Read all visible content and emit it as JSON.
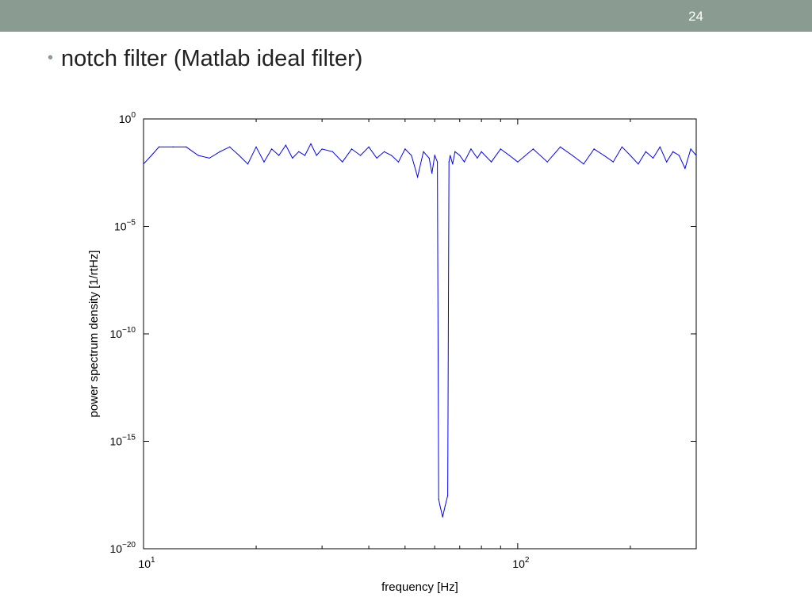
{
  "slide": {
    "number": "24",
    "bullet": "notch filter (Matlab ideal filter)"
  },
  "colors": {
    "header_bar": "#8a9c91",
    "series_line": "#0000ff"
  },
  "chart_data": {
    "type": "line",
    "title": "",
    "xlabel": "frequency [Hz]",
    "ylabel": "power spectrum density [1/rtHz]",
    "x_scale": "log",
    "y_scale": "log",
    "xlim": [
      10,
      300
    ],
    "ylim": [
      1e-20,
      1
    ],
    "x_ticks": [
      {
        "value": 10,
        "base": "10",
        "exp": "1"
      },
      {
        "value": 100,
        "base": "10",
        "exp": "2"
      }
    ],
    "y_ticks": [
      {
        "value": 1,
        "base": "10",
        "exp": "0"
      },
      {
        "value": 1e-05,
        "base": "10",
        "exp": "−5"
      },
      {
        "value": 1e-10,
        "base": "10",
        "exp": "−10"
      },
      {
        "value": 1e-15,
        "base": "10",
        "exp": "−15"
      },
      {
        "value": 1e-20,
        "base": "10",
        "exp": "−20"
      }
    ],
    "grid": false,
    "legend": "none",
    "series": [
      {
        "x": [
          10,
          10.5,
          11,
          12,
          13,
          14,
          15,
          16,
          17,
          18,
          19,
          20,
          21,
          22,
          23,
          24,
          25,
          26,
          27,
          28,
          29,
          30,
          32,
          34,
          36,
          38,
          40,
          42,
          44,
          46,
          48,
          50,
          52,
          54,
          56,
          58,
          59,
          60,
          61,
          61.5,
          62,
          63,
          64,
          65,
          65.5,
          66,
          67,
          68,
          70,
          72,
          75,
          78,
          80,
          85,
          90,
          95,
          100,
          110,
          120,
          130,
          140,
          150,
          160,
          170,
          180,
          190,
          200,
          210,
          220,
          230,
          240,
          250,
          260,
          270,
          280,
          290,
          300
        ],
        "y": [
          0.008,
          0.02,
          0.05,
          0.05,
          0.05,
          0.02,
          0.015,
          0.03,
          0.05,
          0.02,
          0.008,
          0.05,
          0.01,
          0.04,
          0.02,
          0.06,
          0.015,
          0.03,
          0.02,
          0.07,
          0.02,
          0.04,
          0.03,
          0.01,
          0.04,
          0.02,
          0.05,
          0.015,
          0.03,
          0.02,
          0.01,
          0.04,
          0.02,
          0.002,
          0.03,
          0.015,
          0.003,
          0.02,
          0.01,
          2e-18,
          1e-18,
          3e-19,
          1e-18,
          3e-18,
          0.01,
          0.02,
          0.008,
          0.03,
          0.02,
          0.01,
          0.04,
          0.015,
          0.03,
          0.01,
          0.04,
          0.02,
          0.01,
          0.04,
          0.01,
          0.05,
          0.02,
          0.008,
          0.04,
          0.02,
          0.01,
          0.05,
          0.02,
          0.008,
          0.03,
          0.015,
          0.05,
          0.01,
          0.03,
          0.02,
          0.005,
          0.04,
          0.02
        ]
      }
    ]
  }
}
